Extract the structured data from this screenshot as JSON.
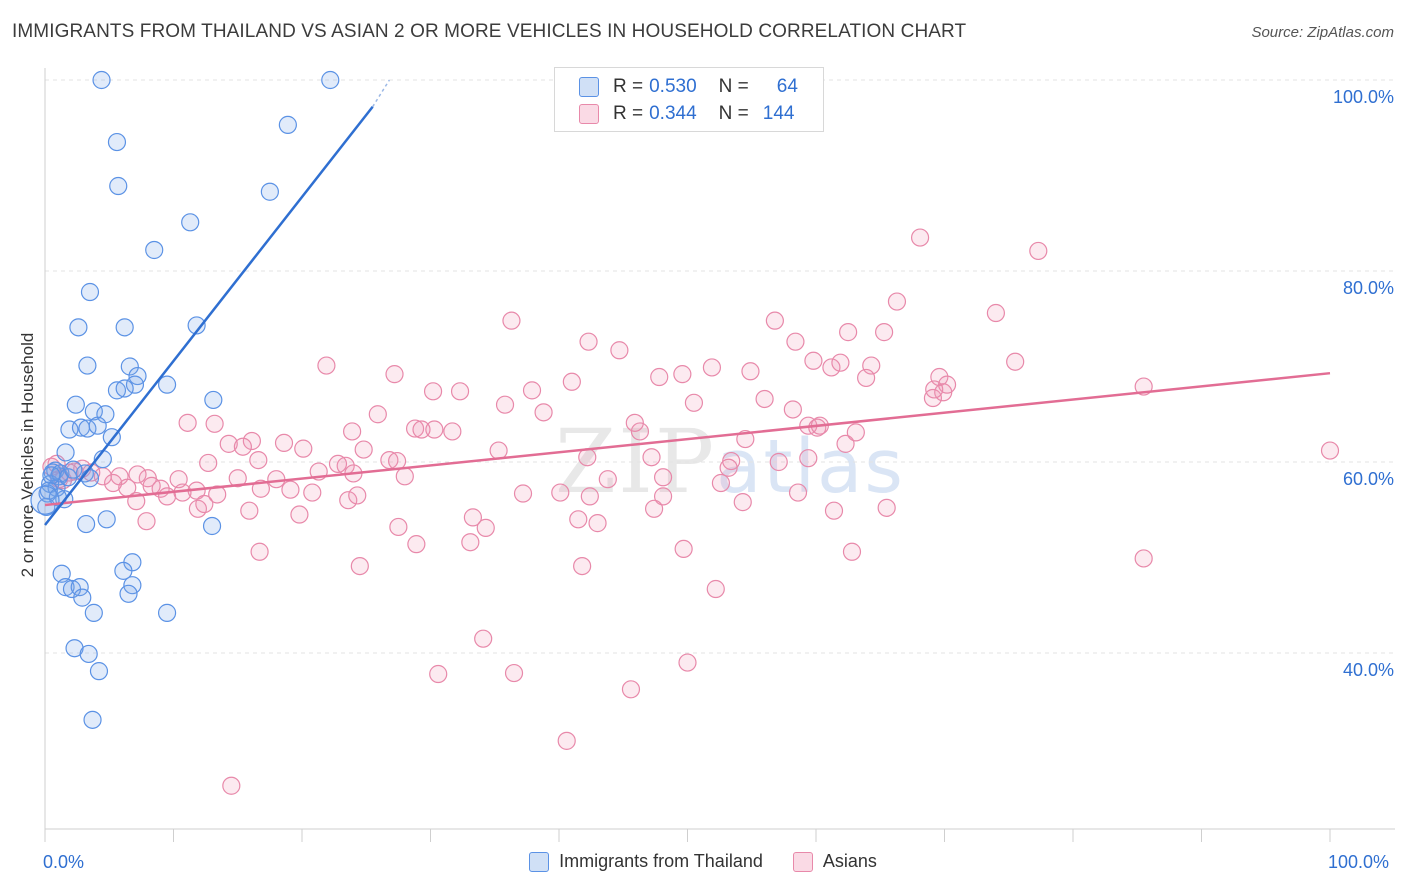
{
  "title": "IMMIGRANTS FROM THAILAND VS ASIAN 2 OR MORE VEHICLES IN HOUSEHOLD CORRELATION CHART",
  "source": "Source: ZipAtlas.com",
  "watermark": {
    "zip": "ZIP",
    "atlas": "atlas"
  },
  "colors": {
    "blue": "#5b92e5",
    "blue_fill": "rgba(120,165,230,0.22)",
    "pink": "#e889aa",
    "pink_fill": "rgba(240,150,180,0.2)",
    "blue_line": "#2f6fd1",
    "pink_line": "#e26d94",
    "accent_text": "#2f6fd1"
  },
  "legend_top": {
    "r_label": "R =",
    "n_label": "N =",
    "series": [
      {
        "r": "0.530",
        "n": "64"
      },
      {
        "r": "0.344",
        "n": "144"
      }
    ]
  },
  "legend_bottom": [
    "Immigrants from Thailand",
    "Asians"
  ],
  "chart_data": {
    "type": "scatter",
    "title": "IMMIGRANTS FROM THAILAND VS ASIAN 2 OR MORE VEHICLES IN HOUSEHOLD CORRELATION CHART",
    "xlabel": "",
    "ylabel": "2 or more Vehicles in Household",
    "xlim": [
      0,
      100
    ],
    "ylim": [
      20,
      102
    ],
    "x_tick_labels": [
      "0.0%",
      "100.0%"
    ],
    "y_tick_labels": [
      "100.0%",
      "80.0%",
      "60.0%",
      "40.0%"
    ],
    "y_ticks": [
      100,
      80,
      60,
      40
    ],
    "series": [
      {
        "name": "Immigrants from Thailand",
        "R": 0.53,
        "N": 64,
        "trend": {
          "x": [
            0,
            25.5
          ],
          "y": [
            53.4,
            97.2
          ],
          "dashed_to": [
            26.8,
            100
          ]
        },
        "points": [
          [
            4.4,
            100
          ],
          [
            22.2,
            100
          ],
          [
            5.6,
            93.5
          ],
          [
            18.9,
            95.3
          ],
          [
            5.7,
            88.9
          ],
          [
            17.5,
            88.3
          ],
          [
            11.3,
            85.1
          ],
          [
            8.5,
            82.2
          ],
          [
            3.5,
            77.8
          ],
          [
            2.6,
            74.1
          ],
          [
            6.2,
            74.1
          ],
          [
            11.8,
            74.3
          ],
          [
            3.3,
            70.1
          ],
          [
            6.6,
            70
          ],
          [
            7.2,
            69
          ],
          [
            7.0,
            68.1
          ],
          [
            9.5,
            68.1
          ],
          [
            5.6,
            67.5
          ],
          [
            6.2,
            67.7
          ],
          [
            2.4,
            66
          ],
          [
            13.1,
            66.5
          ],
          [
            3.8,
            65.3
          ],
          [
            4.7,
            65
          ],
          [
            1.9,
            63.4
          ],
          [
            2.8,
            63.6
          ],
          [
            3.3,
            63.5
          ],
          [
            4.1,
            63.8
          ],
          [
            5.2,
            62.6
          ],
          [
            1.6,
            61
          ],
          [
            4.5,
            60.3
          ],
          [
            0.8,
            59.1
          ],
          [
            1.1,
            58.5
          ],
          [
            0.4,
            57.7
          ],
          [
            0.9,
            57.3
          ],
          [
            0.2,
            56.7
          ],
          [
            1.5,
            56.1
          ],
          [
            0.1,
            55.3
          ],
          [
            0.6,
            58.9
          ],
          [
            1.2,
            58.8
          ],
          [
            3.1,
            58.8
          ],
          [
            3.5,
            58.3
          ],
          [
            3.2,
            53.5
          ],
          [
            4.8,
            54
          ],
          [
            13.0,
            53.3
          ],
          [
            6.8,
            49.5
          ],
          [
            1.3,
            48.3
          ],
          [
            6.1,
            48.6
          ],
          [
            1.6,
            46.9
          ],
          [
            2.1,
            46.7
          ],
          [
            2.7,
            46.9
          ],
          [
            6.8,
            47.1
          ],
          [
            6.5,
            46.2
          ],
          [
            2.9,
            45.8
          ],
          [
            3.8,
            44.2
          ],
          [
            9.5,
            44.2
          ],
          [
            2.3,
            40.5
          ],
          [
            3.4,
            39.9
          ],
          [
            4.2,
            38.1
          ],
          [
            3.7,
            33
          ],
          [
            0.5,
            58.6
          ],
          [
            1.8,
            58.4
          ],
          [
            0.3,
            57
          ],
          [
            1.0,
            56.3
          ],
          [
            2.2,
            59.2
          ]
        ]
      },
      {
        "name": "Asians",
        "R": 0.344,
        "N": 144,
        "trend": {
          "x": [
            0,
            100
          ],
          "y": [
            55.5,
            69.3
          ]
        },
        "points": [
          [
            68.1,
            83.5
          ],
          [
            77.3,
            82.1
          ],
          [
            36.3,
            74.8
          ],
          [
            56.8,
            74.8
          ],
          [
            66.3,
            76.8
          ],
          [
            74.0,
            75.6
          ],
          [
            42.3,
            72.6
          ],
          [
            44.7,
            71.7
          ],
          [
            58.4,
            72.6
          ],
          [
            62.5,
            73.6
          ],
          [
            65.3,
            73.6
          ],
          [
            21.9,
            70.1
          ],
          [
            27.2,
            69.2
          ],
          [
            41.0,
            68.4
          ],
          [
            49.6,
            69.2
          ],
          [
            47.8,
            68.9
          ],
          [
            51.9,
            69.9
          ],
          [
            54.9,
            69.5
          ],
          [
            59.8,
            70.6
          ],
          [
            61.2,
            69.9
          ],
          [
            61.9,
            70.4
          ],
          [
            64.3,
            70.1
          ],
          [
            63.9,
            68.8
          ],
          [
            69.6,
            68.9
          ],
          [
            75.5,
            70.5
          ],
          [
            30.2,
            67.4
          ],
          [
            32.3,
            67.4
          ],
          [
            35.8,
            66
          ],
          [
            38.8,
            65.2
          ],
          [
            37.9,
            67.5
          ],
          [
            46.3,
            63.2
          ],
          [
            50.5,
            66.2
          ],
          [
            56.0,
            66.6
          ],
          [
            59.4,
            63.8
          ],
          [
            58.2,
            65.5
          ],
          [
            69.1,
            66.7
          ],
          [
            69.9,
            67.3
          ],
          [
            70.2,
            68.1
          ],
          [
            69.2,
            67.6
          ],
          [
            85.5,
            67.9
          ],
          [
            11.1,
            64.1
          ],
          [
            13.2,
            64
          ],
          [
            25.9,
            65
          ],
          [
            28.8,
            63.5
          ],
          [
            30.3,
            63.4
          ],
          [
            31.7,
            63.2
          ],
          [
            16.1,
            62.2
          ],
          [
            18.6,
            62
          ],
          [
            23.9,
            63.2
          ],
          [
            29.3,
            63.4
          ],
          [
            45.9,
            64.1
          ],
          [
            54.5,
            62.4
          ],
          [
            57.1,
            60
          ],
          [
            60.1,
            63.6
          ],
          [
            60.3,
            63.8
          ],
          [
            62.3,
            61.9
          ],
          [
            63.1,
            63.1
          ],
          [
            14.3,
            61.9
          ],
          [
            15.4,
            61.6
          ],
          [
            20.1,
            61.4
          ],
          [
            24.8,
            61.3
          ],
          [
            35.3,
            61.2
          ],
          [
            42.2,
            60.5
          ],
          [
            47.2,
            60.5
          ],
          [
            53.4,
            60.1
          ],
          [
            53.2,
            59.4
          ],
          [
            59.4,
            60.4
          ],
          [
            12.7,
            59.9
          ],
          [
            16.6,
            60.2
          ],
          [
            23.4,
            59.6
          ],
          [
            26.8,
            60.2
          ],
          [
            27.4,
            60.1
          ],
          [
            21.3,
            59
          ],
          [
            22.8,
            59.8
          ],
          [
            24.0,
            58.8
          ],
          [
            28.0,
            58.5
          ],
          [
            43.8,
            58.2
          ],
          [
            48.1,
            58.4
          ],
          [
            15.0,
            58.3
          ],
          [
            18.0,
            58.2
          ],
          [
            10.4,
            58.2
          ],
          [
            8.0,
            58.3
          ],
          [
            5.8,
            58.5
          ],
          [
            4.5,
            58.5
          ],
          [
            6.4,
            57.3
          ],
          [
            9.0,
            57.2
          ],
          [
            11.8,
            57
          ],
          [
            16.8,
            57.2
          ],
          [
            19.1,
            57.1
          ],
          [
            20.8,
            56.8
          ],
          [
            23.6,
            56
          ],
          [
            24.3,
            56.5
          ],
          [
            37.2,
            56.7
          ],
          [
            40.1,
            56.8
          ],
          [
            42.4,
            56.4
          ],
          [
            48.1,
            56.4
          ],
          [
            52.6,
            57.8
          ],
          [
            54.3,
            55.8
          ],
          [
            58.6,
            56.8
          ],
          [
            9.5,
            56.4
          ],
          [
            13.4,
            56.6
          ],
          [
            7.1,
            55.9
          ],
          [
            11.9,
            55.1
          ],
          [
            15.9,
            54.9
          ],
          [
            19.8,
            54.5
          ],
          [
            33.3,
            54.2
          ],
          [
            34.3,
            53.1
          ],
          [
            43.0,
            53.6
          ],
          [
            41.5,
            54
          ],
          [
            47.4,
            55.1
          ],
          [
            61.4,
            54.9
          ],
          [
            65.5,
            55.2
          ],
          [
            7.9,
            53.8
          ],
          [
            27.5,
            53.2
          ],
          [
            28.9,
            51.4
          ],
          [
            33.1,
            51.6
          ],
          [
            49.7,
            50.9
          ],
          [
            16.7,
            50.6
          ],
          [
            24.5,
            49.1
          ],
          [
            41.8,
            49.1
          ],
          [
            62.8,
            50.6
          ],
          [
            85.5,
            49.9
          ],
          [
            52.2,
            46.7
          ],
          [
            34.1,
            41.5
          ],
          [
            50.0,
            39
          ],
          [
            30.6,
            37.8
          ],
          [
            36.5,
            37.9
          ],
          [
            45.6,
            36.2
          ],
          [
            40.6,
            30.8
          ],
          [
            14.5,
            26.1
          ],
          [
            100.0,
            61.2
          ],
          [
            0.5,
            59.5
          ],
          [
            1.4,
            58.1
          ],
          [
            2.9,
            59.3
          ],
          [
            3.6,
            58.9
          ],
          [
            5.3,
            57.8
          ],
          [
            2.3,
            59
          ],
          [
            1.9,
            58.9
          ],
          [
            7.2,
            58.7
          ],
          [
            8.3,
            57.5
          ],
          [
            0.9,
            59.8
          ],
          [
            10.7,
            56.8
          ],
          [
            12.4,
            55.6
          ],
          [
            1.1,
            58.2
          ]
        ]
      }
    ]
  }
}
